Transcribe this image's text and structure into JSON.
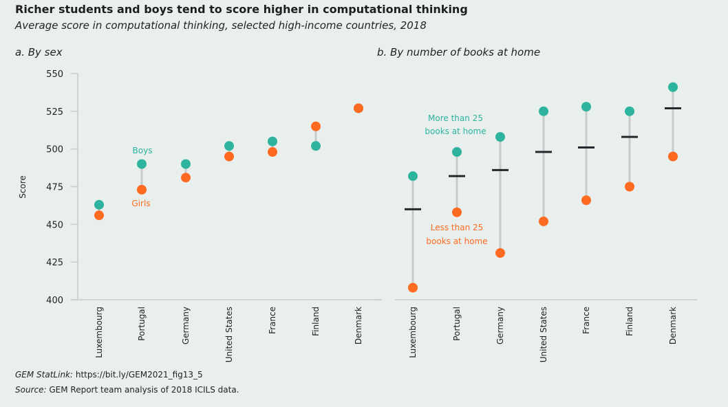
{
  "title": "Richer students and boys tend to score higher in computational thinking",
  "subtitle": "Average score in computational thinking, selected high-income countries, 2018",
  "footer": {
    "statlink_label": "GEM StatLink:",
    "statlink": "https://bit.ly/GEM2021_fig13_5",
    "source_label": "Source:",
    "source": "GEM Report team analysis of 2018 ICILS data."
  },
  "colors": {
    "teal": "#2db39e",
    "orange": "#ff6a22",
    "line": "#c5cbcb",
    "avg": "#24282c",
    "bg": "#e8efec"
  },
  "chart_data": [
    {
      "type": "scatter",
      "title": "a. By sex",
      "ylabel": "Score",
      "ylim": [
        400,
        550
      ],
      "yticks": [
        400,
        425,
        450,
        475,
        500,
        525,
        550
      ],
      "grid": false,
      "categories": [
        "Luxembourg",
        "Portugal",
        "Germany",
        "United States",
        "France",
        "Finland",
        "Denmark"
      ],
      "series": [
        {
          "name": "Boys",
          "color": "teal",
          "values": [
            463,
            490,
            490,
            502,
            505,
            502,
            527
          ]
        },
        {
          "name": "Girls",
          "color": "orange",
          "values": [
            456,
            473,
            481,
            495,
            498,
            515,
            527
          ]
        }
      ]
    },
    {
      "type": "scatter",
      "title": "b. By number of books at home",
      "ylim": [
        400,
        550
      ],
      "grid": false,
      "categories": [
        "Luxembourg",
        "Portugal",
        "Germany",
        "United States",
        "France",
        "Finland",
        "Denmark"
      ],
      "series": [
        {
          "name": "More than 25 books at home",
          "color": "teal",
          "values": [
            482,
            498,
            508,
            525,
            528,
            525,
            541
          ]
        },
        {
          "name": "Less than 25 books at home",
          "color": "orange",
          "values": [
            408,
            458,
            431,
            452,
            466,
            475,
            495
          ]
        },
        {
          "color": "avg",
          "values": [
            460,
            482,
            486,
            498,
            501,
            508,
            527
          ]
        }
      ]
    }
  ],
  "annotations": {
    "boys": "Boys",
    "girls": "Girls",
    "more_1": "More than 25",
    "more_2": "books at home",
    "less_1": "Less than 25",
    "less_2": "books at home"
  }
}
